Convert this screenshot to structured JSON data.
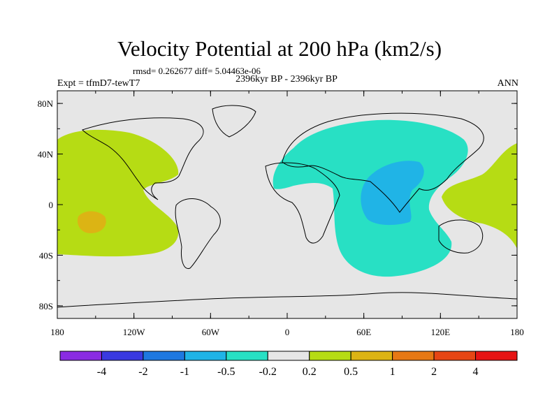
{
  "title": "Velocity Potential at 200 hPa (km2/s)",
  "stats_line": "rmsd= 0.262677 diff= 5.04463e-06",
  "period": "2396kyr BP - 2396kyr BP",
  "experiment": "Expt = tfmD7-tewT7",
  "season": "ANN",
  "lat_labels": [
    "80N",
    "40N",
    "0",
    "40S",
    "80S"
  ],
  "lon_labels": [
    "180",
    "120W",
    "60W",
    "0",
    "60E",
    "120E",
    "180"
  ],
  "colorbar": {
    "colors": [
      "#8a2be2",
      "#3a3ae0",
      "#1e78e0",
      "#20b4e6",
      "#28e0c4",
      "#e6e6e6",
      "#b6dc14",
      "#dcb414",
      "#e67814",
      "#e64614",
      "#e61414"
    ],
    "labels": [
      "-4",
      "-2",
      "-1",
      "-0.5",
      "-0.2",
      "0.2",
      "0.5",
      "1",
      "2",
      "4"
    ]
  },
  "fields": {
    "background": "#e6e6e6",
    "positive": "#b6dc14",
    "strong_positive": "#dcb414",
    "negative": "#28e0c4",
    "strong_negative": "#20b4e6"
  }
}
